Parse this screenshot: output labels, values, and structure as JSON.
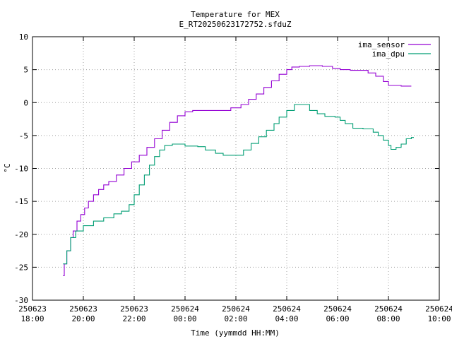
{
  "chart_data": {
    "type": "line",
    "title": "Temperature for MEX",
    "subtitle": "E_RT20250623172752.sfduZ",
    "xlabel": "Time (yymmdd HH:MM)",
    "ylabel": "°C",
    "ylim": [
      -30,
      10
    ],
    "xlim": [
      18,
      34
    ],
    "x_unit": "hours since 250623 00:00",
    "y_ticks": [
      -30,
      -25,
      -20,
      -15,
      -10,
      -5,
      0,
      5,
      10
    ],
    "x_ticks": [
      {
        "at": 18,
        "date": "250623",
        "time": "18:00"
      },
      {
        "at": 20,
        "date": "250623",
        "time": "20:00"
      },
      {
        "at": 22,
        "date": "250623",
        "time": "22:00"
      },
      {
        "at": 24,
        "date": "250624",
        "time": "00:00"
      },
      {
        "at": 26,
        "date": "250624",
        "time": "02:00"
      },
      {
        "at": 28,
        "date": "250624",
        "time": "04:00"
      },
      {
        "at": 30,
        "date": "250624",
        "time": "06:00"
      },
      {
        "at": 32,
        "date": "250624",
        "time": "08:00"
      },
      {
        "at": 34,
        "date": "250624",
        "time": "10:00"
      }
    ],
    "grid": true,
    "legend_position": "top-right",
    "series": [
      {
        "name": "ima_sensor",
        "color": "#9400d3",
        "points": [
          [
            19.2,
            -26.3
          ],
          [
            19.25,
            -24.5
          ],
          [
            19.35,
            -22.5
          ],
          [
            19.5,
            -20.5
          ],
          [
            19.6,
            -19.5
          ],
          [
            19.75,
            -18
          ],
          [
            19.9,
            -17
          ],
          [
            20.05,
            -16
          ],
          [
            20.2,
            -15
          ],
          [
            20.4,
            -14
          ],
          [
            20.6,
            -13.2
          ],
          [
            20.8,
            -12.5
          ],
          [
            21.0,
            -12
          ],
          [
            21.3,
            -11
          ],
          [
            21.6,
            -10
          ],
          [
            21.9,
            -9
          ],
          [
            22.2,
            -8
          ],
          [
            22.5,
            -6.8
          ],
          [
            22.8,
            -5.5
          ],
          [
            23.1,
            -4.2
          ],
          [
            23.4,
            -3.0
          ],
          [
            23.7,
            -2.0
          ],
          [
            24.0,
            -1.4
          ],
          [
            24.3,
            -1.2
          ],
          [
            25.0,
            -1.2
          ],
          [
            25.4,
            -1.2
          ],
          [
            25.8,
            -0.8
          ],
          [
            26.2,
            -0.3
          ],
          [
            26.5,
            0.5
          ],
          [
            26.8,
            1.3
          ],
          [
            27.1,
            2.3
          ],
          [
            27.4,
            3.3
          ],
          [
            27.7,
            4.3
          ],
          [
            28.0,
            5.0
          ],
          [
            28.2,
            5.4
          ],
          [
            28.5,
            5.5
          ],
          [
            28.9,
            5.6
          ],
          [
            29.4,
            5.5
          ],
          [
            29.8,
            5.2
          ],
          [
            30.1,
            5.0
          ],
          [
            30.5,
            4.9
          ],
          [
            31.0,
            4.9
          ],
          [
            31.2,
            4.5
          ],
          [
            31.5,
            4.0
          ],
          [
            31.8,
            3.2
          ],
          [
            32.0,
            2.6
          ],
          [
            32.5,
            2.5
          ],
          [
            32.9,
            2.5
          ]
        ]
      },
      {
        "name": "ima_dpu",
        "color": "#009e73",
        "points": [
          [
            19.2,
            -24.5
          ],
          [
            19.35,
            -22.5
          ],
          [
            19.5,
            -20.5
          ],
          [
            19.7,
            -19.5
          ],
          [
            20.0,
            -18.7
          ],
          [
            20.4,
            -18.0
          ],
          [
            20.8,
            -17.5
          ],
          [
            21.2,
            -16.9
          ],
          [
            21.5,
            -16.5
          ],
          [
            21.8,
            -15.5
          ],
          [
            22.0,
            -14
          ],
          [
            22.2,
            -12.5
          ],
          [
            22.4,
            -11
          ],
          [
            22.6,
            -9.5
          ],
          [
            22.8,
            -8.2
          ],
          [
            23.0,
            -7.2
          ],
          [
            23.2,
            -6.5
          ],
          [
            23.5,
            -6.3
          ],
          [
            23.8,
            -6.3
          ],
          [
            24.0,
            -6.6
          ],
          [
            24.5,
            -6.7
          ],
          [
            24.8,
            -7.2
          ],
          [
            25.2,
            -7.7
          ],
          [
            25.5,
            -8.0
          ],
          [
            26.0,
            -8.0
          ],
          [
            26.3,
            -7.2
          ],
          [
            26.6,
            -6.2
          ],
          [
            26.9,
            -5.2
          ],
          [
            27.2,
            -4.2
          ],
          [
            27.5,
            -3.2
          ],
          [
            27.7,
            -2.2
          ],
          [
            28.0,
            -1.2
          ],
          [
            28.3,
            -0.3
          ],
          [
            28.6,
            -0.3
          ],
          [
            28.9,
            -1.2
          ],
          [
            29.2,
            -1.7
          ],
          [
            29.5,
            -2.1
          ],
          [
            29.9,
            -2.2
          ],
          [
            30.1,
            -2.7
          ],
          [
            30.3,
            -3.2
          ],
          [
            30.6,
            -3.9
          ],
          [
            31.0,
            -4.0
          ],
          [
            31.2,
            -4.0
          ],
          [
            31.4,
            -4.5
          ],
          [
            31.6,
            -5.0
          ],
          [
            31.8,
            -5.7
          ],
          [
            32.0,
            -6.5
          ],
          [
            32.1,
            -7.1
          ],
          [
            32.3,
            -6.8
          ],
          [
            32.5,
            -6.3
          ],
          [
            32.7,
            -5.5
          ],
          [
            32.9,
            -5.3
          ],
          [
            33.0,
            -5.3
          ]
        ]
      }
    ]
  }
}
